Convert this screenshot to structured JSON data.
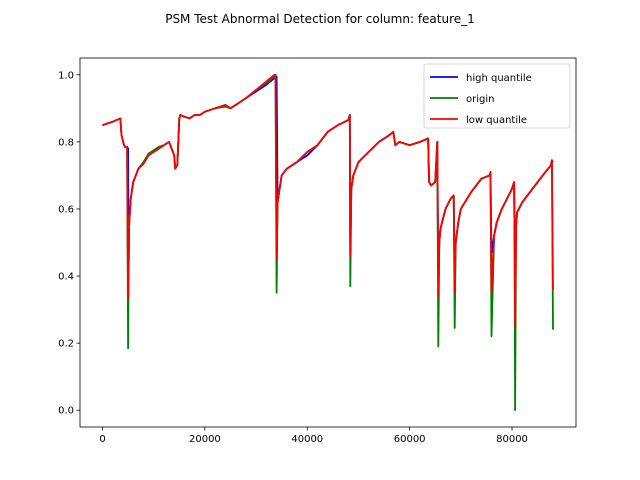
{
  "chart_data": {
    "type": "line",
    "title": "PSM Test Abnormal Detection for column: feature_1",
    "xlabel": "",
    "ylabel": "",
    "xlim": [
      -4400,
      92500
    ],
    "ylim": [
      -0.05,
      1.05
    ],
    "x_ticks": [
      0,
      20000,
      40000,
      60000,
      80000
    ],
    "x_tick_labels": [
      "0",
      "20000",
      "40000",
      "60000",
      "80000"
    ],
    "y_ticks": [
      0.0,
      0.2,
      0.4,
      0.6,
      0.8,
      1.0
    ],
    "y_tick_labels": [
      "0.0",
      "0.2",
      "0.4",
      "0.6",
      "0.8",
      "1.0"
    ],
    "grid": false,
    "legend_position": "upper right",
    "series": [
      {
        "name": "high quantile",
        "color": "#0000ff",
        "x": [
          0,
          2000,
          3500,
          3700,
          4200,
          4400,
          4800,
          5000,
          5100,
          5200,
          5500,
          6000,
          7000,
          8000,
          9000,
          10000,
          11000,
          12000,
          13000,
          14000,
          14200,
          14600,
          15000,
          15200,
          16000,
          17000,
          18000,
          19000,
          20000,
          22000,
          24000,
          25000,
          26000,
          28000,
          30000,
          32000,
          33600,
          33800,
          34000,
          34200,
          34600,
          35000,
          36000,
          38000,
          40000,
          42000,
          44000,
          46000,
          48000,
          48300,
          48400,
          48600,
          49000,
          50000,
          52000,
          54000,
          56000,
          56800,
          57200,
          58000,
          60000,
          62000,
          63600,
          63800,
          64200,
          65000,
          65400,
          65600,
          65800,
          66000,
          66500,
          67000,
          68000,
          68600,
          68800,
          69000,
          69500,
          70000,
          72000,
          74000,
          75600,
          75800,
          76000,
          76500,
          77000,
          78000,
          80000,
          80400,
          80500,
          80600,
          80800,
          81000,
          82000,
          84000,
          86000,
          87600,
          87800,
          88000
        ],
        "y": [
          0.85,
          0.86,
          0.87,
          0.82,
          0.79,
          0.785,
          0.785,
          0.78,
          0.42,
          0.55,
          0.63,
          0.68,
          0.72,
          0.735,
          0.76,
          0.77,
          0.78,
          0.79,
          0.8,
          0.76,
          0.72,
          0.73,
          0.87,
          0.88,
          0.875,
          0.87,
          0.88,
          0.88,
          0.89,
          0.9,
          0.91,
          0.9,
          0.91,
          0.93,
          0.95,
          0.97,
          0.99,
          0.99,
          0.995,
          0.62,
          0.66,
          0.7,
          0.72,
          0.74,
          0.76,
          0.79,
          0.83,
          0.85,
          0.865,
          0.88,
          0.48,
          0.66,
          0.7,
          0.74,
          0.77,
          0.8,
          0.82,
          0.83,
          0.79,
          0.8,
          0.79,
          0.8,
          0.81,
          0.68,
          0.67,
          0.68,
          0.8,
          0.42,
          0.5,
          0.54,
          0.57,
          0.6,
          0.63,
          0.64,
          0.42,
          0.5,
          0.56,
          0.6,
          0.65,
          0.69,
          0.7,
          0.71,
          0.47,
          0.52,
          0.56,
          0.6,
          0.66,
          0.68,
          0.5,
          0.47,
          0.55,
          0.59,
          0.62,
          0.66,
          0.7,
          0.73,
          0.745,
          0.74
        ]
      },
      {
        "name": "origin",
        "color": "#008000",
        "x": [
          0,
          2000,
          3500,
          3700,
          4200,
          4400,
          4800,
          5000,
          5100,
          5200,
          5500,
          6000,
          7000,
          8000,
          9000,
          10000,
          11000,
          12000,
          13000,
          14000,
          14200,
          14600,
          15000,
          15200,
          16000,
          17000,
          18000,
          19000,
          20000,
          22000,
          24000,
          25000,
          26000,
          28000,
          30000,
          32000,
          33600,
          33800,
          34000,
          34200,
          34600,
          35000,
          36000,
          38000,
          40000,
          42000,
          44000,
          46000,
          48000,
          48300,
          48400,
          48600,
          49000,
          50000,
          52000,
          54000,
          56000,
          56800,
          57200,
          58000,
          60000,
          62000,
          63600,
          63800,
          64200,
          65000,
          65400,
          65600,
          65800,
          66000,
          66500,
          67000,
          68000,
          68600,
          68800,
          69000,
          69500,
          70000,
          72000,
          74000,
          75600,
          75800,
          76000,
          76500,
          77000,
          78000,
          80000,
          80400,
          80500,
          80600,
          80800,
          81000,
          82000,
          84000,
          86000,
          87600,
          87800,
          88000
        ],
        "y": [
          0.85,
          0.86,
          0.87,
          0.82,
          0.79,
          0.785,
          0.785,
          0.185,
          0.42,
          0.55,
          0.63,
          0.68,
          0.72,
          0.74,
          0.765,
          0.775,
          0.785,
          0.79,
          0.8,
          0.76,
          0.72,
          0.73,
          0.87,
          0.88,
          0.875,
          0.87,
          0.88,
          0.88,
          0.89,
          0.9,
          0.905,
          0.9,
          0.91,
          0.93,
          0.955,
          0.975,
          0.995,
          0.995,
          0.35,
          0.62,
          0.66,
          0.7,
          0.72,
          0.74,
          0.77,
          0.79,
          0.83,
          0.85,
          0.865,
          0.88,
          0.37,
          0.66,
          0.7,
          0.74,
          0.77,
          0.8,
          0.82,
          0.83,
          0.79,
          0.8,
          0.79,
          0.8,
          0.81,
          0.68,
          0.67,
          0.68,
          0.8,
          0.19,
          0.5,
          0.54,
          0.57,
          0.6,
          0.63,
          0.64,
          0.245,
          0.5,
          0.56,
          0.6,
          0.65,
          0.69,
          0.7,
          0.71,
          0.22,
          0.52,
          0.56,
          0.6,
          0.66,
          0.68,
          0.5,
          0.0,
          0.55,
          0.59,
          0.62,
          0.66,
          0.7,
          0.73,
          0.745,
          0.24
        ]
      },
      {
        "name": "low quantile",
        "color": "#ff0000",
        "x": [
          0,
          2000,
          3500,
          3700,
          4200,
          4400,
          4800,
          5000,
          5100,
          5200,
          5500,
          6000,
          7000,
          8000,
          9000,
          10000,
          11000,
          12000,
          13000,
          14000,
          14200,
          14600,
          15000,
          15200,
          16000,
          17000,
          18000,
          19000,
          20000,
          22000,
          24000,
          25000,
          26000,
          28000,
          30000,
          32000,
          33600,
          33800,
          34000,
          34200,
          34600,
          35000,
          36000,
          38000,
          40000,
          42000,
          44000,
          46000,
          48000,
          48300,
          48400,
          48600,
          49000,
          50000,
          52000,
          54000,
          56000,
          56800,
          57200,
          58000,
          60000,
          62000,
          63600,
          63800,
          64200,
          65000,
          65400,
          65600,
          65800,
          66000,
          66500,
          67000,
          68000,
          68600,
          68800,
          69000,
          69500,
          70000,
          72000,
          74000,
          75600,
          75800,
          76000,
          76500,
          77000,
          78000,
          80000,
          80400,
          80500,
          80600,
          80800,
          81000,
          82000,
          84000,
          86000,
          87600,
          87800,
          88000
        ],
        "y": [
          0.85,
          0.86,
          0.87,
          0.82,
          0.79,
          0.785,
          0.785,
          0.33,
          0.42,
          0.55,
          0.63,
          0.68,
          0.72,
          0.735,
          0.76,
          0.77,
          0.78,
          0.79,
          0.8,
          0.76,
          0.72,
          0.73,
          0.87,
          0.88,
          0.875,
          0.87,
          0.88,
          0.88,
          0.89,
          0.9,
          0.91,
          0.9,
          0.91,
          0.93,
          0.955,
          0.98,
          1.0,
          1.0,
          0.45,
          0.62,
          0.66,
          0.7,
          0.72,
          0.74,
          0.77,
          0.79,
          0.83,
          0.85,
          0.865,
          0.88,
          0.46,
          0.66,
          0.7,
          0.74,
          0.77,
          0.8,
          0.82,
          0.83,
          0.79,
          0.8,
          0.79,
          0.8,
          0.81,
          0.68,
          0.67,
          0.68,
          0.8,
          0.34,
          0.5,
          0.54,
          0.57,
          0.6,
          0.63,
          0.64,
          0.35,
          0.5,
          0.56,
          0.6,
          0.65,
          0.69,
          0.7,
          0.71,
          0.35,
          0.52,
          0.56,
          0.6,
          0.66,
          0.68,
          0.5,
          0.25,
          0.55,
          0.59,
          0.62,
          0.66,
          0.7,
          0.73,
          0.745,
          0.36
        ]
      }
    ]
  }
}
